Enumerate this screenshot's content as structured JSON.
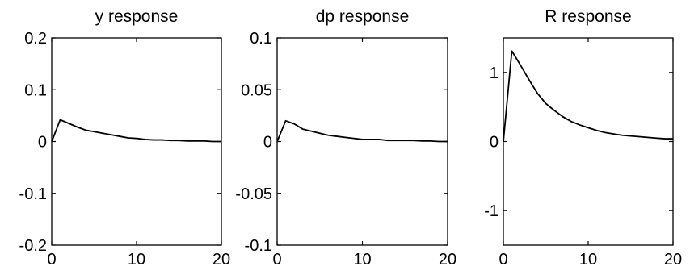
{
  "chart_data": [
    {
      "type": "line",
      "title": "y response",
      "xlabel": "",
      "ylabel": "",
      "xlim": [
        0,
        20
      ],
      "ylim": [
        -0.2,
        0.2
      ],
      "xticks": [
        0,
        10,
        20
      ],
      "xtick_labels": [
        "0",
        "10",
        "20"
      ],
      "yticks": [
        0.2,
        0.1,
        0,
        -0.1,
        -0.2
      ],
      "ytick_labels": [
        "0.2",
        "0.1",
        "0",
        "-0.1",
        "-0.2"
      ],
      "grid": false,
      "series": [
        {
          "x": [
            0,
            1,
            2,
            3,
            4,
            5,
            6,
            7,
            8,
            9,
            10,
            11,
            12,
            13,
            14,
            15,
            16,
            17,
            18,
            19,
            20
          ],
          "values": [
            0,
            0.042,
            0.035,
            0.028,
            0.022,
            0.019,
            0.016,
            0.013,
            0.01,
            0.007,
            0.006,
            0.004,
            0.003,
            0.003,
            0.002,
            0.002,
            0.001,
            0.001,
            0.001,
            0,
            0
          ]
        }
      ]
    },
    {
      "type": "line",
      "title": "dp response",
      "xlabel": "",
      "ylabel": "",
      "xlim": [
        0,
        20
      ],
      "ylim": [
        -0.1,
        0.1
      ],
      "xticks": [
        0,
        10,
        20
      ],
      "xtick_labels": [
        "0",
        "10",
        "20"
      ],
      "yticks": [
        0.1,
        0.05,
        0,
        -0.05,
        -0.1
      ],
      "ytick_labels": [
        "0.1",
        "0.05",
        "0",
        "-0.05",
        "-0.1"
      ],
      "grid": false,
      "series": [
        {
          "x": [
            0,
            1,
            2,
            3,
            4,
            5,
            6,
            7,
            8,
            9,
            10,
            11,
            12,
            13,
            14,
            15,
            16,
            17,
            18,
            19,
            20
          ],
          "values": [
            0,
            0.02,
            0.017,
            0.012,
            0.01,
            0.008,
            0.006,
            0.005,
            0.004,
            0.003,
            0.002,
            0.002,
            0.002,
            0.001,
            0.001,
            0.001,
            0.001,
            0.0005,
            0.0005,
            0,
            0
          ]
        }
      ]
    },
    {
      "type": "line",
      "title": "R response",
      "xlabel": "",
      "ylabel": "",
      "xlim": [
        0,
        20
      ],
      "ylim": [
        -1.5,
        1.5
      ],
      "xticks": [
        0,
        10,
        20
      ],
      "xtick_labels": [
        "0",
        "10",
        "20"
      ],
      "yticks": [
        1,
        0,
        -1
      ],
      "ytick_labels": [
        "1",
        "0",
        "-1"
      ],
      "grid": false,
      "series": [
        {
          "x": [
            0,
            1,
            2,
            3,
            4,
            5,
            6,
            7,
            8,
            9,
            10,
            11,
            12,
            13,
            14,
            15,
            16,
            17,
            18,
            19,
            20
          ],
          "values": [
            0,
            1.31,
            1.11,
            0.9,
            0.7,
            0.55,
            0.45,
            0.36,
            0.29,
            0.24,
            0.2,
            0.16,
            0.13,
            0.11,
            0.09,
            0.08,
            0.07,
            0.06,
            0.05,
            0.04,
            0.04
          ]
        }
      ]
    }
  ]
}
